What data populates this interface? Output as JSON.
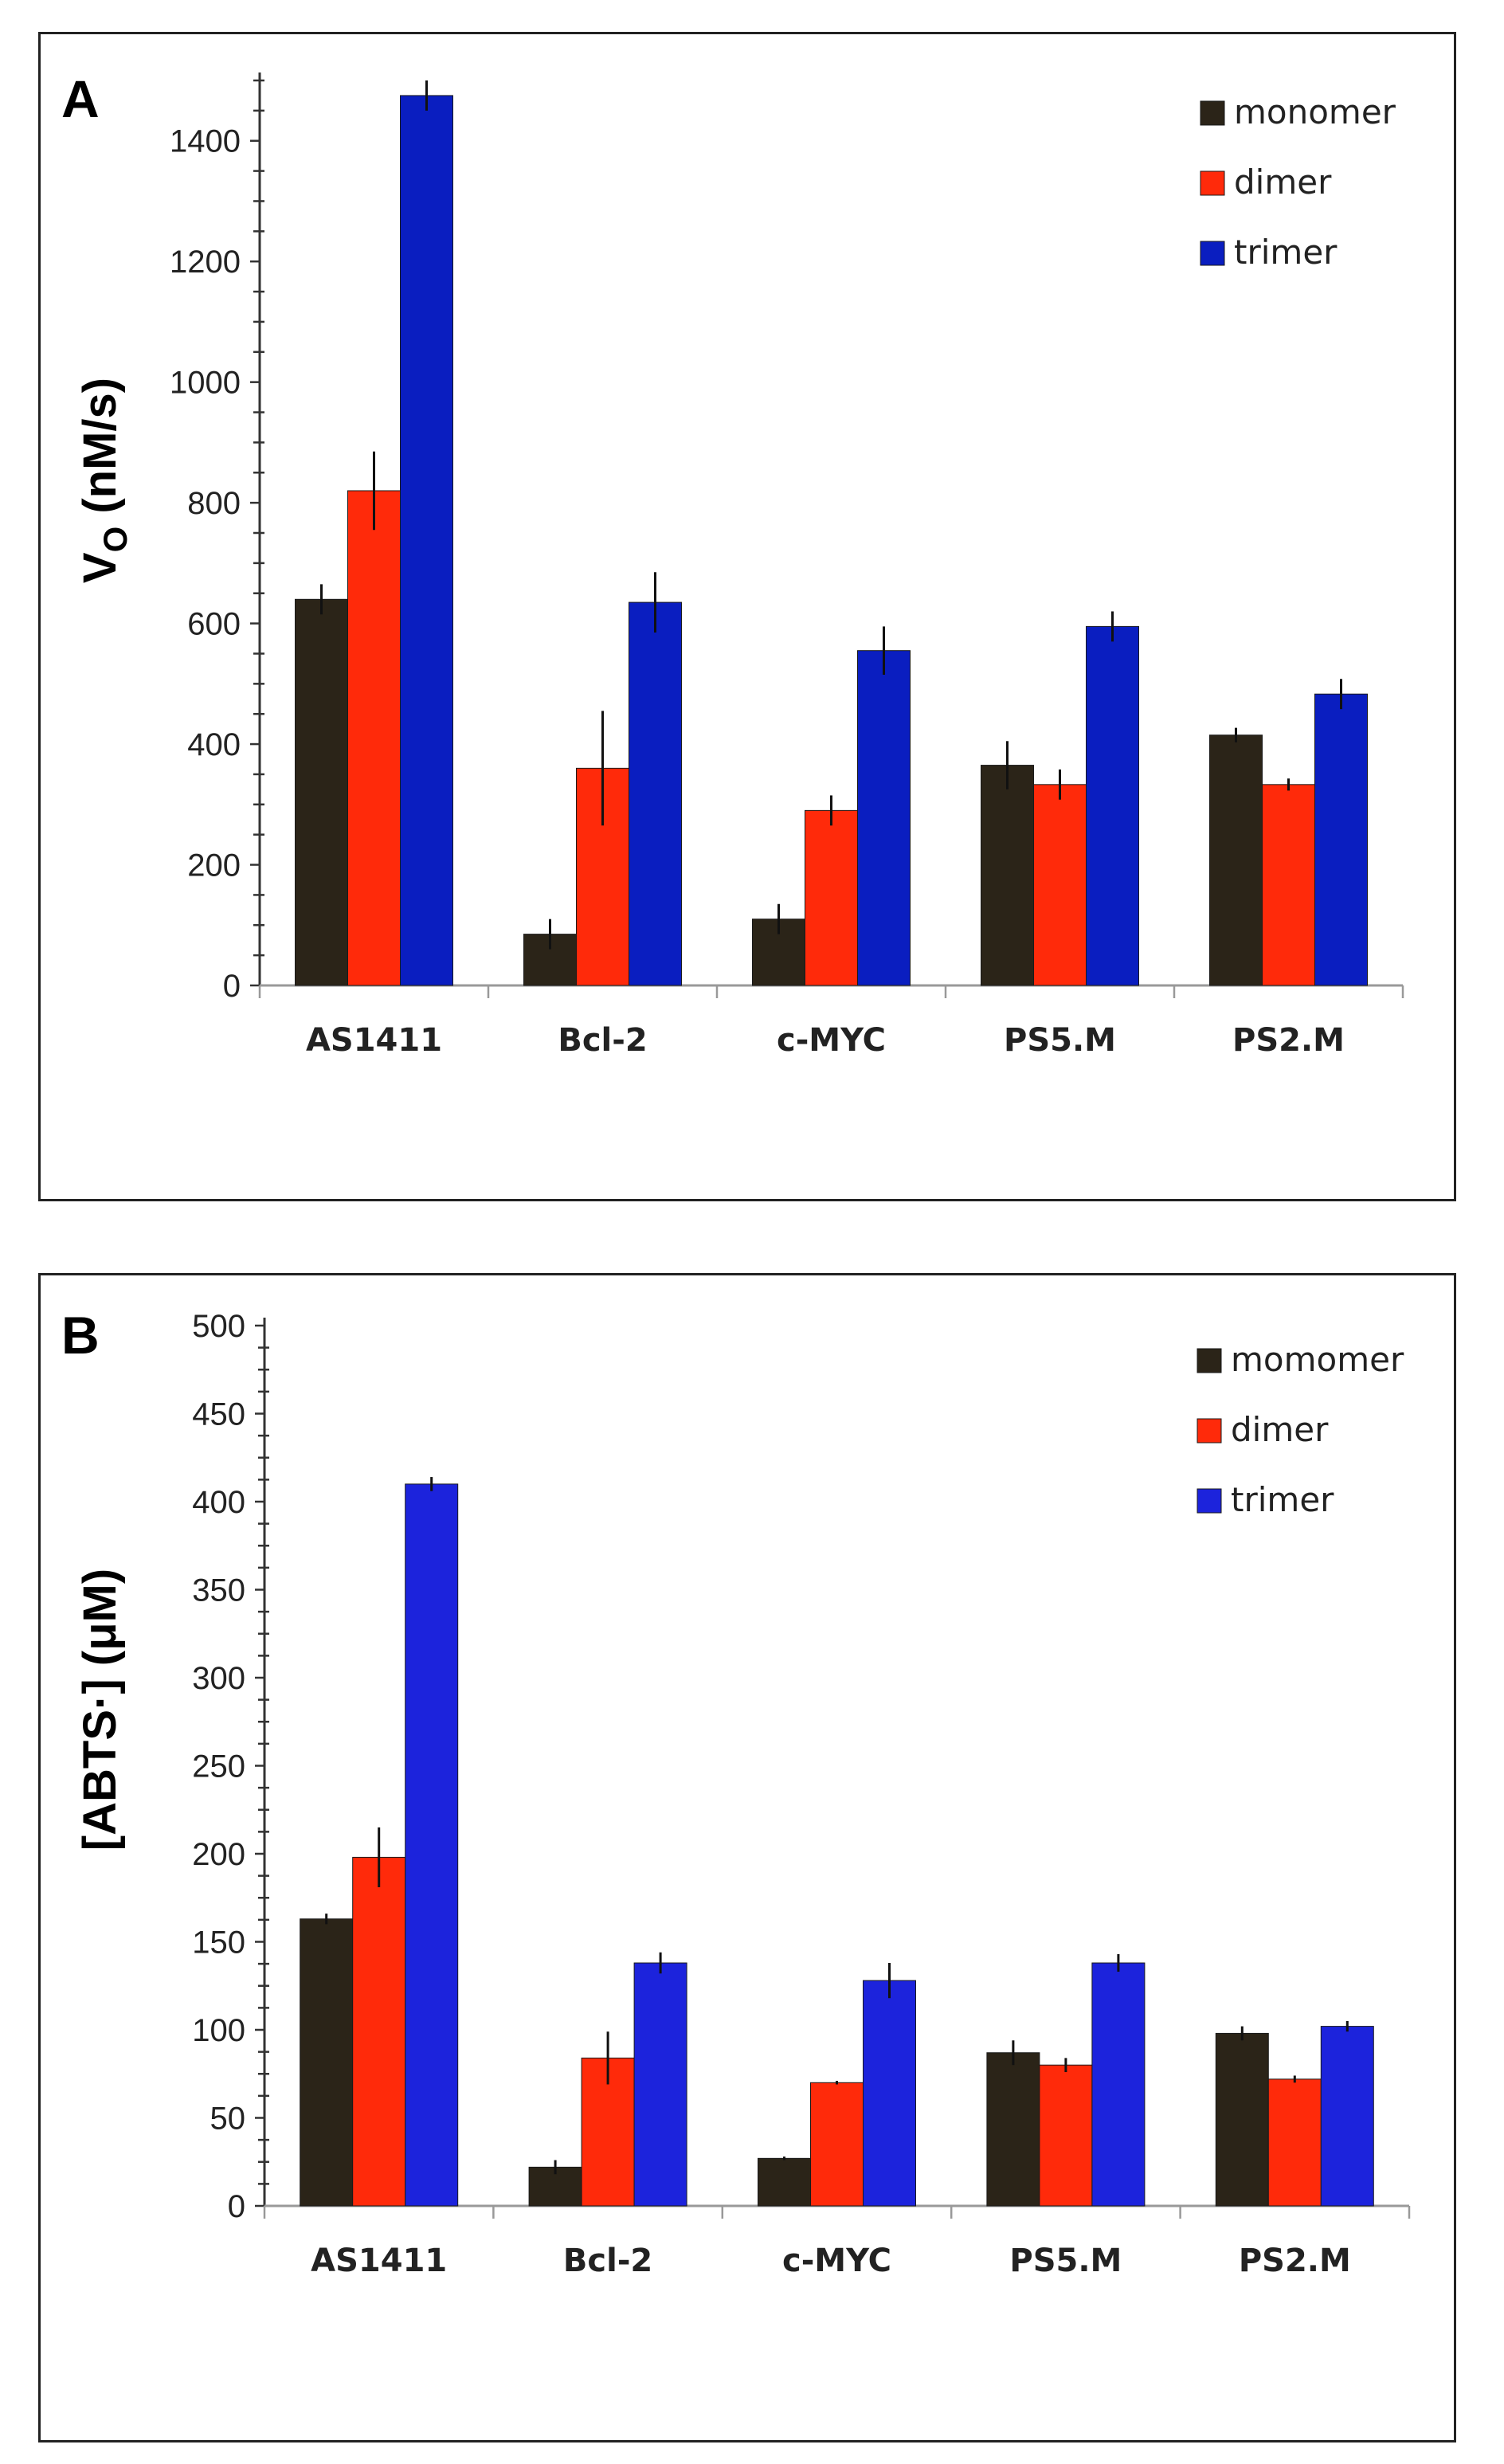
{
  "chart_data": [
    {
      "type": "bar",
      "panel_label": "A",
      "ylabel_main": "V",
      "ylabel_sub": "O",
      "ylabel_rest": " (nM/s)",
      "ylim": [
        0,
        1500
      ],
      "yticks": [
        0,
        200,
        400,
        600,
        800,
        1000,
        1200,
        1400
      ],
      "categories": [
        "AS1411",
        "Bcl-2",
        "c-MYC",
        "PS5.M",
        "PS2.M"
      ],
      "legend_position": "top-right",
      "series": [
        {
          "name": "monomer",
          "color": "#2b2418",
          "values": [
            640,
            85,
            110,
            365,
            415
          ],
          "errors": [
            25,
            25,
            25,
            40,
            12
          ]
        },
        {
          "name": "dimer",
          "color": "#ff2a0a",
          "values": [
            820,
            360,
            290,
            333,
            333
          ],
          "errors": [
            65,
            95,
            25,
            25,
            10
          ]
        },
        {
          "name": "trimer",
          "color": "#0a1ec0",
          "values": [
            1475,
            635,
            555,
            595,
            483
          ],
          "errors": [
            25,
            50,
            40,
            25,
            25
          ]
        }
      ]
    },
    {
      "type": "bar",
      "panel_label": "B",
      "ylabel": "[ABTS·] (μM)",
      "ylim": [
        0,
        500
      ],
      "yticks": [
        0,
        50,
        100,
        150,
        200,
        250,
        300,
        350,
        400,
        450,
        500
      ],
      "categories": [
        "AS1411",
        "Bcl-2",
        "c-MYC",
        "PS5.M",
        "PS2.M"
      ],
      "legend_position": "top-right",
      "series": [
        {
          "name": "momomer",
          "color": "#2b2418",
          "values": [
            163,
            22,
            27,
            87,
            98
          ],
          "errors": [
            3,
            4,
            1,
            7,
            4
          ]
        },
        {
          "name": "dimer",
          "color": "#ff2a0a",
          "values": [
            198,
            84,
            70,
            80,
            72
          ],
          "errors": [
            17,
            15,
            1,
            4,
            2
          ]
        },
        {
          "name": "trimer",
          "color": "#1c23dc",
          "values": [
            410,
            138,
            128,
            138,
            102
          ],
          "errors": [
            4,
            6,
            10,
            5,
            3
          ]
        }
      ]
    }
  ]
}
